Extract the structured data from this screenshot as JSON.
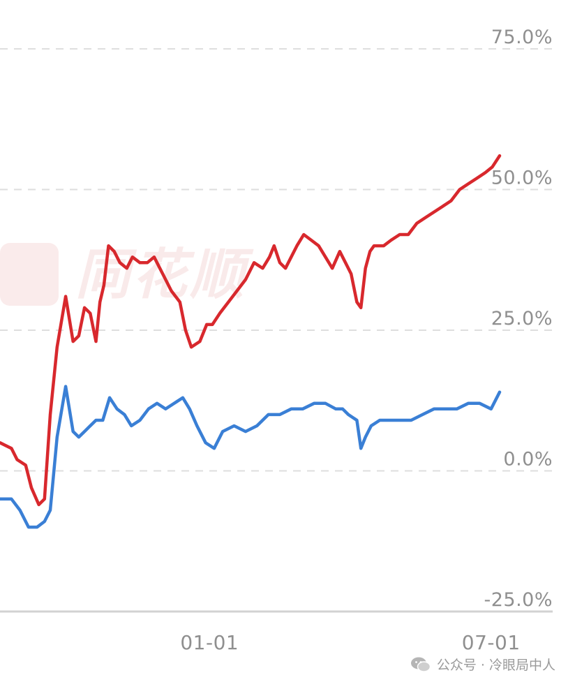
{
  "watermark": {
    "text": "同花顺"
  },
  "footer": {
    "text": "公众号 · 冷眼局中人"
  },
  "chart_data": {
    "type": "line",
    "title": "",
    "xlabel": "",
    "ylabel": "",
    "y_unit": "%",
    "ylim": [
      -25,
      75
    ],
    "yticks": [
      75,
      50,
      25,
      0,
      -25
    ],
    "ytick_labels": [
      "75.0%",
      "50.0%",
      "25.0%",
      "0.0%",
      "-25.0%"
    ],
    "x_ticks": [
      {
        "label": "01-01",
        "t": 0.367
      },
      {
        "label": "07-01",
        "t": 0.86
      }
    ],
    "grid": true,
    "legend": "none",
    "series": [
      {
        "color": "#d8282d",
        "x": [
          0,
          0.02,
          0.03,
          0.045,
          0.055,
          0.068,
          0.078,
          0.088,
          0.1,
          0.115,
          0.128,
          0.138,
          0.148,
          0.158,
          0.168,
          0.175,
          0.182,
          0.19,
          0.2,
          0.21,
          0.222,
          0.232,
          0.245,
          0.258,
          0.27,
          0.285,
          0.3,
          0.315,
          0.325,
          0.335,
          0.35,
          0.362,
          0.372,
          0.385,
          0.4,
          0.415,
          0.43,
          0.445,
          0.46,
          0.472,
          0.48,
          0.49,
          0.5,
          0.51,
          0.52,
          0.532,
          0.545,
          0.558,
          0.57,
          0.582,
          0.595,
          0.605,
          0.615,
          0.625,
          0.632,
          0.64,
          0.648,
          0.655,
          0.662,
          0.672,
          0.685,
          0.7,
          0.715,
          0.73,
          0.745,
          0.76,
          0.775,
          0.79,
          0.805,
          0.82,
          0.835,
          0.85,
          0.862,
          0.875
        ],
        "y": [
          5,
          4,
          2,
          1,
          -3,
          -6,
          -5,
          10,
          22,
          31,
          23,
          24,
          29,
          28,
          23,
          30,
          33,
          40,
          39,
          37,
          36,
          38,
          37,
          37,
          38,
          35,
          32,
          30,
          25,
          22,
          23,
          26,
          26,
          28,
          30,
          32,
          34,
          37,
          36,
          38,
          40,
          37,
          36,
          38,
          40,
          42,
          41,
          40,
          38,
          36,
          39,
          37,
          35,
          30,
          29,
          36,
          39,
          40,
          40,
          40,
          41,
          42,
          42,
          44,
          45,
          46,
          47,
          48,
          50,
          51,
          52,
          53,
          54,
          56
        ]
      },
      {
        "color": "#3a7fd5",
        "x": [
          0,
          0.02,
          0.035,
          0.05,
          0.065,
          0.078,
          0.088,
          0.1,
          0.115,
          0.128,
          0.138,
          0.148,
          0.158,
          0.168,
          0.18,
          0.192,
          0.205,
          0.218,
          0.23,
          0.245,
          0.26,
          0.275,
          0.29,
          0.305,
          0.32,
          0.332,
          0.345,
          0.36,
          0.375,
          0.39,
          0.41,
          0.43,
          0.45,
          0.47,
          0.49,
          0.51,
          0.53,
          0.55,
          0.57,
          0.588,
          0.6,
          0.61,
          0.625,
          0.632,
          0.64,
          0.65,
          0.665,
          0.68,
          0.7,
          0.72,
          0.74,
          0.76,
          0.78,
          0.8,
          0.82,
          0.84,
          0.86,
          0.875
        ],
        "y": [
          -5,
          -5,
          -7,
          -10,
          -10,
          -9,
          -7,
          6,
          15,
          7,
          6,
          7,
          8,
          9,
          9,
          13,
          11,
          10,
          8,
          9,
          11,
          12,
          11,
          12,
          13,
          11,
          8,
          5,
          4,
          7,
          8,
          7,
          8,
          10,
          10,
          11,
          11,
          12,
          12,
          11,
          11,
          10,
          9,
          4,
          6,
          8,
          9,
          9,
          9,
          9,
          10,
          11,
          11,
          11,
          12,
          12,
          11,
          14
        ]
      }
    ]
  }
}
